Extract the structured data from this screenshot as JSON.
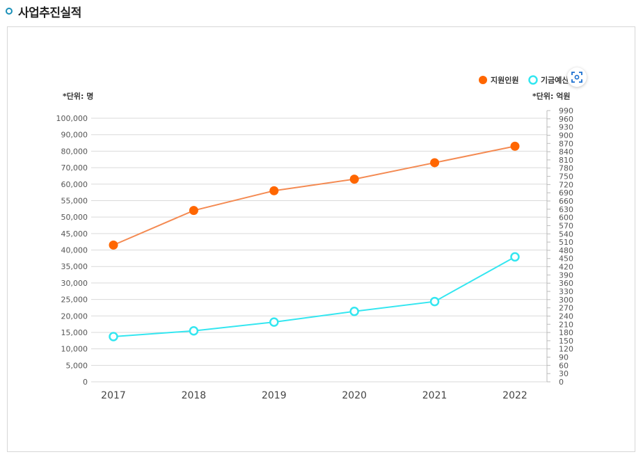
{
  "section": {
    "title": "사업추진실적"
  },
  "colors": {
    "support": "#ff6600",
    "support_line": "#f48a52",
    "budget": "#33e6f0",
    "grid": "#d9d9d9",
    "bullet": "#1a90b8"
  },
  "icons": {
    "header": "circle-bullet-icon",
    "capture": "screen-capture-icon"
  },
  "chart_data": {
    "type": "line",
    "categories": [
      "2017",
      "2018",
      "2019",
      "2020",
      "2021",
      "2022"
    ],
    "left_axis": {
      "unit_label": "*단위: 명",
      "ticks": [
        0,
        5000,
        10000,
        15000,
        20000,
        25000,
        30000,
        35000,
        40000,
        45000,
        50000,
        55000,
        60000,
        70000,
        80000,
        90000,
        100000
      ],
      "tick_labels": [
        "0",
        "5,000",
        "10,000",
        "15,000",
        "20,000",
        "25,000",
        "30,000",
        "35,000",
        "40,000",
        "45,000",
        "50,000",
        "55,000",
        "60,000",
        "70,000",
        "80,000",
        "90,000",
        "100,000"
      ]
    },
    "right_axis": {
      "unit_label": "*단위: 억원",
      "ticks": [
        0,
        30,
        60,
        90,
        120,
        150,
        180,
        210,
        240,
        270,
        300,
        330,
        360,
        390,
        420,
        450,
        480,
        510,
        540,
        570,
        600,
        630,
        660,
        690,
        720,
        750,
        780,
        810,
        840,
        870,
        900,
        930,
        960,
        990
      ]
    },
    "series": [
      {
        "name": "지원인원",
        "axis": "left",
        "values": [
          41500,
          52000,
          58000,
          63000,
          73000,
          83000
        ]
      },
      {
        "name": "기금예산",
        "axis": "right",
        "values": [
          165,
          186,
          218,
          257,
          293,
          456
        ]
      }
    ],
    "legend_position": "top-right",
    "grid": true
  }
}
